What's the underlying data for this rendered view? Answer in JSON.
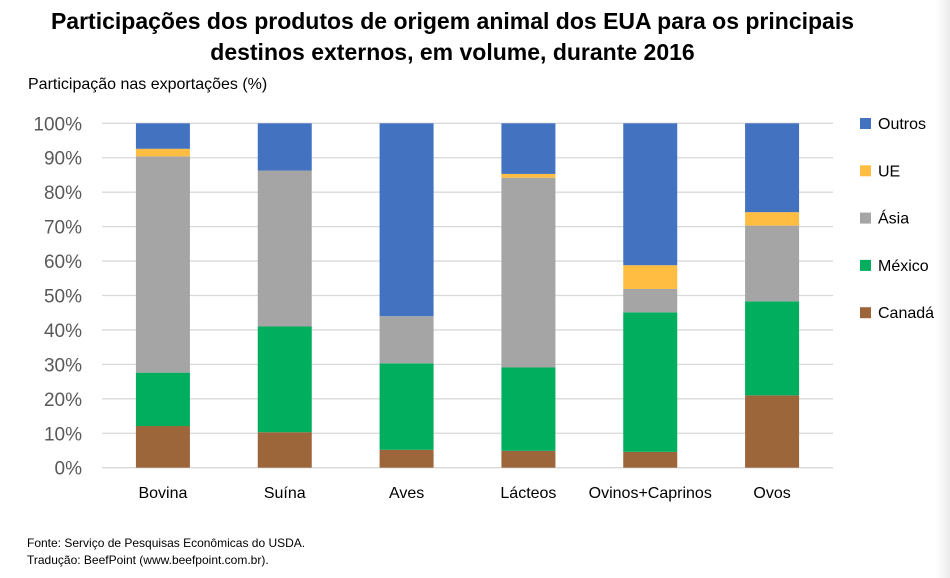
{
  "chart_data": {
    "type": "bar",
    "stacked": true,
    "percent_stacked": true,
    "title": "Participações dos produtos de origem animal dos EUA para os principais destinos externos, em volume, durante 2016",
    "title_lines": [
      "Participações dos produtos de origem animal dos EUA para os principais",
      "destinos externos, em volume, durante 2016"
    ],
    "xlabel": "",
    "ylabel": "Participação nas exportações (%)",
    "ylim": [
      0,
      100
    ],
    "yticks": [
      "0%",
      "10%",
      "20%",
      "30%",
      "40%",
      "50%",
      "60%",
      "70%",
      "80%",
      "90%",
      "100%"
    ],
    "grid": true,
    "legend_position": "right",
    "categories": [
      "Bovina",
      "Suína",
      "Aves",
      "Lácteos",
      "Ovinos+Caprinos",
      "Ovos"
    ],
    "series": [
      {
        "name": "Canadá",
        "color": "#9C653A",
        "values": [
          12.1,
          10.3,
          5.2,
          4.9,
          4.6,
          21.0
        ]
      },
      {
        "name": "México",
        "color": "#00AE5E",
        "values": [
          15.5,
          30.7,
          25.1,
          24.2,
          40.5,
          27.3
        ]
      },
      {
        "name": "Ásia",
        "color": "#A5A5A5",
        "values": [
          62.8,
          45.3,
          13.7,
          55.1,
          6.8,
          22.0
        ]
      },
      {
        "name": "UE",
        "color": "#FFBE42",
        "values": [
          2.2,
          0.0,
          0.0,
          1.1,
          6.9,
          3.9
        ]
      },
      {
        "name": "Outros",
        "color": "#4373C0",
        "values": [
          7.4,
          13.7,
          56.0,
          14.7,
          41.2,
          25.8
        ]
      }
    ],
    "legend_order": [
      "Outros",
      "UE",
      "Ásia",
      "México",
      "Canadá"
    ]
  },
  "footer": {
    "source": "Fonte: Serviço de Pesquisas Econômicas do USDA.",
    "translation": "Tradução: BeefPoint (www.beefpoint.com.br)."
  }
}
